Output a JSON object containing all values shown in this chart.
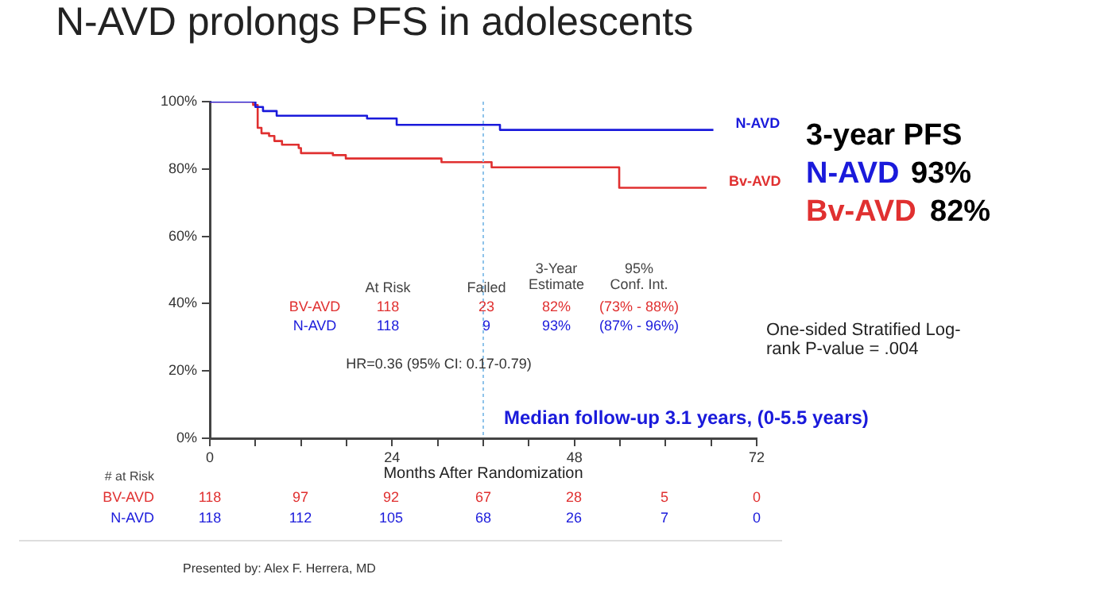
{
  "chart_data": {
    "type": "step",
    "title": "N-AVD prolongs PFS in adolescents",
    "xlabel": "Months After Randomization",
    "xlim": [
      0,
      72
    ],
    "xticks": [
      0,
      {
        "value": 6,
        "label": null
      },
      {
        "value": 12,
        "label": null
      },
      {
        "value": 18,
        "label": null
      },
      24,
      {
        "value": 30,
        "label": null
      },
      {
        "value": 36,
        "label": null
      },
      {
        "value": 42,
        "label": null
      },
      48,
      {
        "value": 54,
        "label": null
      },
      {
        "value": 60,
        "label": null
      },
      {
        "value": 66,
        "label": null
      },
      72
    ],
    "ylim": [
      0,
      100
    ],
    "yticks": [
      {
        "value": 0,
        "label": "0%"
      },
      {
        "value": 20,
        "label": "20%"
      },
      {
        "value": 40,
        "label": "40%"
      },
      {
        "value": 60,
        "label": "60%"
      },
      {
        "value": 80,
        "label": "80%"
      },
      {
        "value": 100,
        "label": "100%"
      }
    ],
    "grid": false,
    "legend": false,
    "marker": "none",
    "line_style": "solid",
    "series": [
      {
        "name": "N-AVD",
        "color": "#1a1adb",
        "x": [
          0,
          6,
          7,
          8.8,
          20.7,
          24.6,
          38.2,
          66.3
        ],
        "values": [
          100,
          98.4,
          97.2,
          95.8,
          95,
          93.1,
          91.6,
          91.6
        ]
      },
      {
        "name": "Bv-AVD",
        "color": "#e03030",
        "x": [
          0,
          5.7,
          6.3,
          6.8,
          7.8,
          8.5,
          9.5,
          11.7,
          12,
          16.2,
          17.9,
          30.5,
          37.1,
          53.9,
          65.4
        ],
        "values": [
          100,
          99,
          92.2,
          90.6,
          89.8,
          88.3,
          87.2,
          86.2,
          84.7,
          84.1,
          83.1,
          82,
          80.5,
          74.4,
          74.4
        ]
      }
    ],
    "ref_lines": [
      {
        "axis": "x",
        "value": 36,
        "color": "#8ec3ea",
        "line_style": "dotted"
      }
    ],
    "annotations": [
      "3-year PFS",
      "N-AVD",
      "93%",
      "Bv-AVD",
      "82%",
      "One-sided Stratified Log-\nrank P-value = .004",
      "Median follow-up 3.1 years, (0-5.5 years)",
      "HR=0.36 (95% CI: 0.17-0.79)",
      "At Risk",
      "Failed",
      "3-Year\nEstimate",
      "95%\nConf. Int.",
      "BV-AVD",
      "118",
      "23",
      "82%",
      "(73% - 88%)",
      "N-AVD",
      "118",
      "9",
      "93%",
      "(87% - 96%)",
      "# at Risk",
      "BV-AVD",
      "118",
      "97",
      "92",
      "67",
      "28",
      "5",
      "0",
      "N-AVD",
      "118",
      "112",
      "105",
      "68",
      "26",
      "7",
      "0",
      "Presented by: Alex F. Herrera, MD"
    ]
  }
}
